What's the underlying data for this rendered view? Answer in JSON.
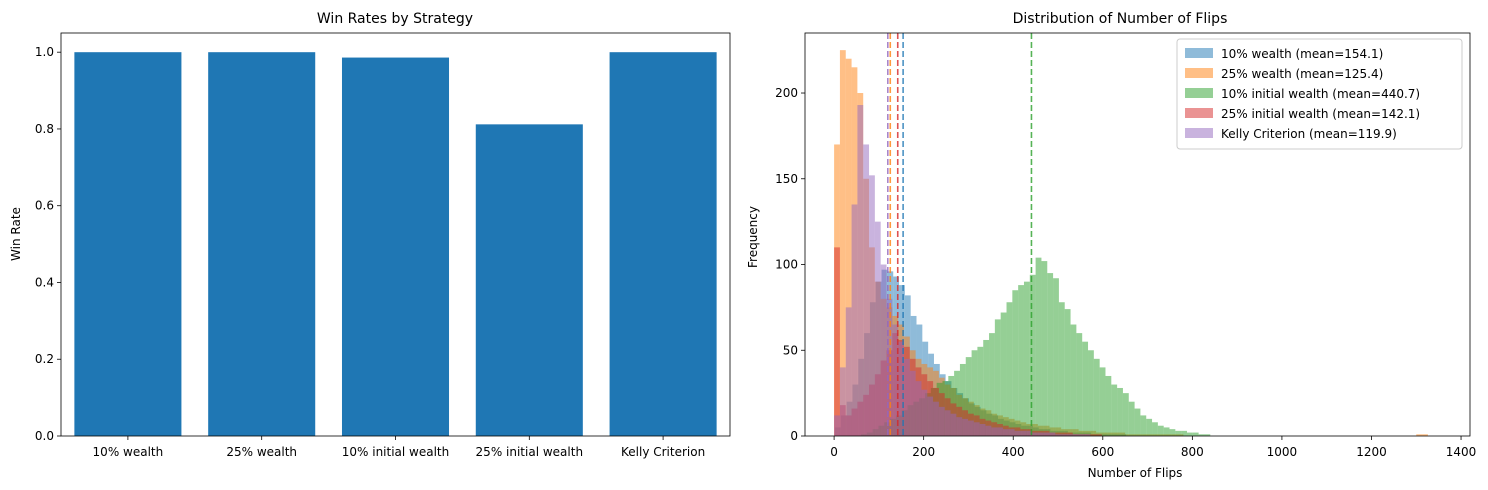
{
  "chart_data": [
    {
      "type": "bar",
      "title": "Win Rates by Strategy",
      "xlabel": "",
      "ylabel": "Win Rate",
      "categories": [
        "10% wealth",
        "25% wealth",
        "10% initial wealth",
        "25% initial wealth",
        "Kelly Criterion"
      ],
      "values": [
        1.0,
        1.0,
        0.986,
        0.812,
        1.0
      ],
      "ylim": [
        0,
        1.05
      ],
      "yticks": [
        0.0,
        0.2,
        0.4,
        0.6,
        0.8,
        1.0
      ],
      "ytick_labels": [
        "0.0",
        "0.2",
        "0.4",
        "0.6",
        "0.8",
        "1.0"
      ],
      "bar_color": "#1f77b4",
      "grid": false
    },
    {
      "type": "histogram",
      "title": "Distribution of Number of Flips",
      "xlabel": "Number of Flips",
      "ylabel": "Frequency",
      "xlim": [
        -65,
        1420
      ],
      "ylim": [
        0,
        235
      ],
      "xticks": [
        0,
        200,
        400,
        600,
        800,
        1000,
        1200,
        1400
      ],
      "xtick_labels": [
        "0",
        "200",
        "400",
        "600",
        "800",
        "1000",
        "1200",
        "1400"
      ],
      "yticks": [
        0,
        50,
        100,
        150,
        200
      ],
      "ytick_labels": [
        "0",
        "50",
        "100",
        "150",
        "200"
      ],
      "legend_position": "top-right",
      "grid": false,
      "series": [
        {
          "name": "10% wealth (mean=154.1)",
          "color": "#1f77b4",
          "mean": 154.1,
          "bin_start": 2,
          "bin_width": 13,
          "counts": [
            5,
            12,
            20,
            30,
            45,
            60,
            78,
            90,
            97,
            96,
            93,
            88,
            82,
            70,
            65,
            55,
            48,
            42,
            36,
            32,
            28,
            25,
            22,
            19,
            17,
            15,
            13,
            12,
            10,
            9,
            8,
            7,
            6,
            6,
            5,
            4,
            4,
            3,
            3,
            3,
            2,
            2,
            2,
            2,
            1,
            1,
            1,
            1,
            1,
            1
          ]
        },
        {
          "name": "25% wealth (mean=125.4)",
          "color": "#ff7f0e",
          "mean": 125.4,
          "bin_start": 0,
          "bin_width": 13,
          "counts": [
            170,
            225,
            220,
            215,
            200,
            150,
            110,
            90,
            80,
            75,
            70,
            65,
            58,
            50,
            45,
            42,
            40,
            38,
            34,
            30,
            28,
            24,
            22,
            20,
            18,
            16,
            15,
            13,
            12,
            11,
            10,
            9,
            8,
            7,
            7,
            6,
            6,
            5,
            5,
            4,
            4,
            4,
            3,
            3,
            3,
            2,
            2,
            2,
            2,
            2,
            1,
            1,
            1,
            1,
            1,
            1,
            1,
            1,
            1,
            1,
            0,
            0,
            0,
            0,
            0,
            0,
            0,
            0,
            0,
            0,
            0,
            0,
            0,
            0,
            0,
            0,
            0,
            0,
            0,
            0,
            0,
            0,
            0,
            0,
            0,
            0,
            0,
            0,
            0,
            0,
            0,
            0,
            0,
            0,
            0,
            0,
            0,
            0,
            0,
            0,
            1,
            1
          ]
        },
        {
          "name": "10% initial wealth (mean=440.7)",
          "color": "#2ca02c",
          "mean": 440.7,
          "bin_start": 60,
          "bin_width": 13,
          "counts": [
            1,
            2,
            4,
            6,
            8,
            10,
            12,
            15,
            18,
            20,
            22,
            25,
            28,
            31,
            32,
            35,
            38,
            42,
            46,
            50,
            52,
            56,
            60,
            68,
            72,
            78,
            85,
            88,
            90,
            94,
            104,
            102,
            95,
            92,
            78,
            74,
            65,
            60,
            55,
            50,
            45,
            40,
            35,
            30,
            28,
            25,
            20,
            16,
            12,
            10,
            8,
            6,
            5,
            4,
            3,
            3,
            2,
            2,
            1,
            1
          ]
        },
        {
          "name": "25% initial wealth (mean=142.1)",
          "color": "#d62728",
          "mean": 142.1,
          "bin_start": 0,
          "bin_width": 13,
          "counts": [
            110,
            18,
            12,
            16,
            20,
            24,
            30,
            36,
            44,
            50,
            60,
            56,
            52,
            45,
            40,
            36,
            32,
            28,
            25,
            22,
            19,
            17,
            15,
            13,
            12,
            10,
            9,
            8,
            7,
            6,
            5,
            5,
            4,
            4,
            3,
            3,
            3,
            2,
            2,
            2,
            2,
            1,
            1,
            1,
            1,
            1
          ]
        },
        {
          "name": "Kelly Criterion (mean=119.9)",
          "color": "#9467bd",
          "mean": 119.9,
          "bin_start": 0,
          "bin_width": 13,
          "counts": [
            12,
            40,
            75,
            135,
            193,
            170,
            152,
            125,
            100,
            80,
            65,
            55,
            45,
            38,
            32,
            27,
            23,
            20,
            17,
            15,
            13,
            11,
            10,
            9,
            8,
            7,
            6,
            5,
            5,
            4,
            4,
            3,
            3,
            3,
            2,
            2,
            2,
            2,
            1,
            1,
            1,
            1,
            1,
            1
          ]
        }
      ]
    }
  ]
}
